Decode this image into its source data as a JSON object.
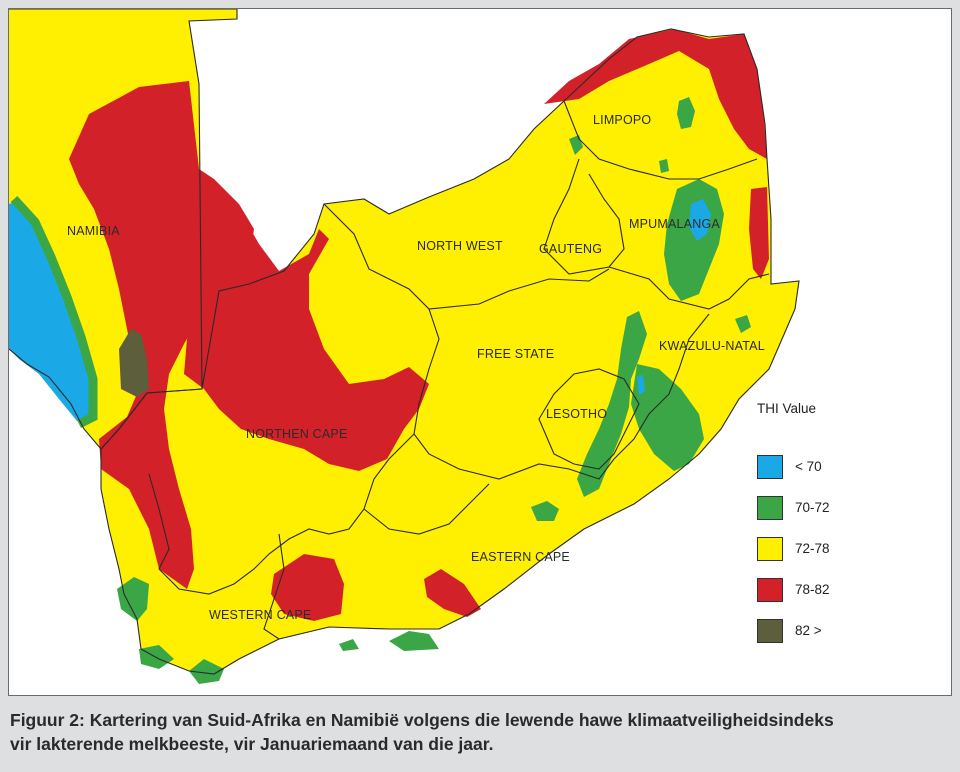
{
  "map": {
    "regions": [
      {
        "id": "namibia",
        "label": "NAMIBIA"
      },
      {
        "id": "limpopo",
        "label": "LIMPOPO"
      },
      {
        "id": "north-west",
        "label": "NORTH WEST"
      },
      {
        "id": "gauteng",
        "label": "GAUTENG"
      },
      {
        "id": "mpumalanga",
        "label": "MPUMALANGA"
      },
      {
        "id": "free-state",
        "label": "FREE STATE"
      },
      {
        "id": "kwazulu-natal",
        "label": "KWAZULU-NATAL"
      },
      {
        "id": "lesotho",
        "label": "LESOTHO"
      },
      {
        "id": "northen-cape",
        "label": "NORTHEN CAPE"
      },
      {
        "id": "eastern-cape",
        "label": "EASTERN CAPE"
      },
      {
        "id": "western-cape",
        "label": "WESTERN CAPE"
      }
    ]
  },
  "legend": {
    "title": "THI Value",
    "items": [
      {
        "label": "< 70",
        "color": "#1aa9e6"
      },
      {
        "label": "70-72",
        "color": "#3aa646"
      },
      {
        "label": "72-78",
        "color": "#ffef00"
      },
      {
        "label": "78-82",
        "color": "#d32129"
      },
      {
        "label": "82 >",
        "color": "#5d5e3c"
      }
    ]
  },
  "caption": {
    "line1": "Figuur 2: Kartering van Suid-Afrika en Namibië volgens die lewende hawe klimaatveiligheidsindeks",
    "line2": "vir lakterende melkbeeste, vir Januariemaand van die jaar."
  }
}
